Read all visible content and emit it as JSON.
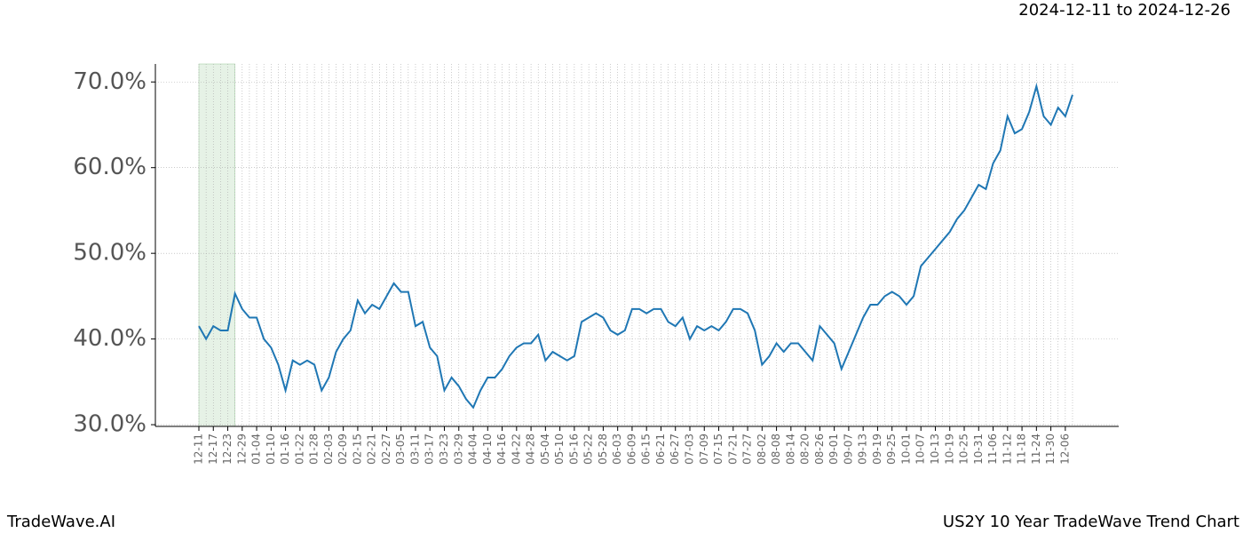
{
  "chart_data": {
    "type": "line",
    "date_range": "2024-12-11 to 2024-12-26",
    "brand": "TradeWave.AI",
    "title": "US2Y 10 Year TradeWave Trend Chart",
    "categories": [
      "12-11",
      null,
      "12-17",
      null,
      "12-23",
      null,
      "12-29",
      null,
      "01-04",
      null,
      "01-10",
      null,
      "01-16",
      null,
      "01-22",
      null,
      "01-28",
      null,
      "02-03",
      null,
      "02-09",
      null,
      "02-15",
      null,
      "02-21",
      null,
      "02-27",
      null,
      "03-05",
      null,
      "03-11",
      null,
      "03-17",
      null,
      "03-23",
      null,
      "03-29",
      null,
      "04-04",
      null,
      "04-10",
      null,
      "04-16",
      null,
      "04-22",
      null,
      "04-28",
      null,
      "05-04",
      null,
      "05-10",
      null,
      "05-16",
      null,
      "05-22",
      null,
      "05-28",
      null,
      "06-03",
      null,
      "06-09",
      null,
      "06-15",
      null,
      "06-21",
      null,
      "06-27",
      null,
      "07-03",
      null,
      "07-09",
      null,
      "07-15",
      null,
      "07-21",
      null,
      "07-27",
      null,
      "08-02",
      null,
      "08-08",
      null,
      "08-14",
      null,
      "08-20",
      null,
      "08-26",
      null,
      "09-01",
      null,
      "09-07",
      null,
      "09-13",
      null,
      "09-19",
      null,
      "09-25",
      null,
      "10-01",
      null,
      "10-07",
      null,
      "10-13",
      null,
      "10-19",
      null,
      "10-25",
      null,
      "10-31",
      null,
      "11-06",
      null,
      "11-12",
      null,
      "11-18",
      null,
      "11-24",
      null,
      "11-30",
      null,
      "12-06",
      null
    ],
    "series": [
      {
        "color": "#1f77b4",
        "values": [
          41.5,
          40,
          41.5,
          41,
          41,
          45.3,
          43.5,
          42.5,
          42.5,
          40,
          39,
          37,
          34,
          37.5,
          37,
          37.5,
          37,
          34,
          35.5,
          38.5,
          40,
          41,
          44.5,
          43,
          44,
          43.5,
          45,
          46.5,
          45.5,
          45.5,
          41.5,
          42,
          39,
          38,
          34,
          35.5,
          34.5,
          33,
          32,
          34,
          35.5,
          35.5,
          36.5,
          38,
          39,
          39.5,
          39.5,
          40.5,
          37.5,
          38.5,
          38,
          37.5,
          38,
          42,
          42.5,
          43,
          42.5,
          41,
          40.5,
          41,
          43.5,
          43.5,
          43,
          43.5,
          43.5,
          42,
          41.5,
          42.5,
          40,
          41.5,
          41,
          41.5,
          41,
          42,
          43.5,
          43.5,
          43,
          41,
          37,
          38,
          39.5,
          38.5,
          39.5,
          39.5,
          38.5,
          37.5,
          41.5,
          40.5,
          39.5,
          36.5,
          38.5,
          40.5,
          42.5,
          44,
          44,
          45,
          45.5,
          45,
          44,
          45,
          48.5,
          49.5,
          50.5,
          51.5,
          52.5,
          54,
          55,
          56.5,
          58,
          57.5,
          60.5,
          62,
          66,
          64,
          64.5,
          66.5,
          69.5,
          66,
          65,
          67,
          66,
          68.5
        ]
      }
    ],
    "shade": {
      "from": 0,
      "to": 5,
      "color": "#e6f2e6"
    },
    "ylim": [
      29.8,
      72.1
    ],
    "yticks": [
      {
        "value": 30,
        "label": "30.0%"
      },
      {
        "value": 40,
        "label": "40.0%"
      },
      {
        "value": 50,
        "label": "50.0%"
      },
      {
        "value": 60,
        "label": "60.0%"
      },
      {
        "value": 70,
        "label": "70.0%"
      }
    ],
    "grid": true
  }
}
